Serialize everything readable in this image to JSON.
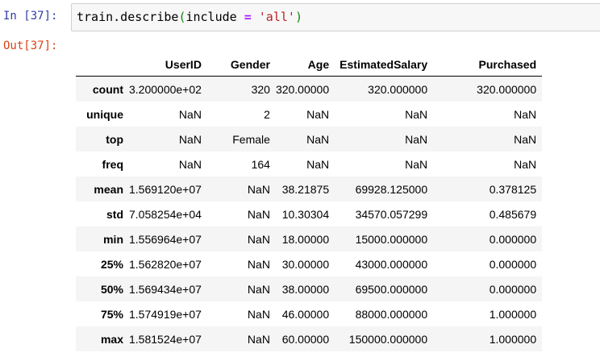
{
  "cell": {
    "in_label": "In [37]:",
    "out_label": "Out[37]:",
    "code": {
      "prefix": "train.describe",
      "open": "(",
      "arg": "include ",
      "op": "=",
      "space": " ",
      "str": "'all'",
      "close": ")"
    }
  },
  "table": {
    "columns": [
      "",
      "UserID",
      "Gender",
      "Age",
      "EstimatedSalary",
      "Purchased"
    ],
    "rows": [
      [
        "count",
        "3.200000e+02",
        "320",
        "320.00000",
        "320.000000",
        "320.000000"
      ],
      [
        "unique",
        "NaN",
        "2",
        "NaN",
        "NaN",
        "NaN"
      ],
      [
        "top",
        "NaN",
        "Female",
        "NaN",
        "NaN",
        "NaN"
      ],
      [
        "freq",
        "NaN",
        "164",
        "NaN",
        "NaN",
        "NaN"
      ],
      [
        "mean",
        "1.569120e+07",
        "NaN",
        "38.21875",
        "69928.125000",
        "0.378125"
      ],
      [
        "std",
        "7.058254e+04",
        "NaN",
        "10.30304",
        "34570.057299",
        "0.485679"
      ],
      [
        "min",
        "1.556964e+07",
        "NaN",
        "18.00000",
        "15000.000000",
        "0.000000"
      ],
      [
        "25%",
        "1.562820e+07",
        "NaN",
        "30.00000",
        "43000.000000",
        "0.000000"
      ],
      [
        "50%",
        "1.569434e+07",
        "NaN",
        "38.00000",
        "69500.000000",
        "0.000000"
      ],
      [
        "75%",
        "1.574919e+07",
        "NaN",
        "46.00000",
        "88000.000000",
        "1.000000"
      ],
      [
        "max",
        "1.581524e+07",
        "NaN",
        "60.00000",
        "150000.000000",
        "1.000000"
      ]
    ]
  }
}
